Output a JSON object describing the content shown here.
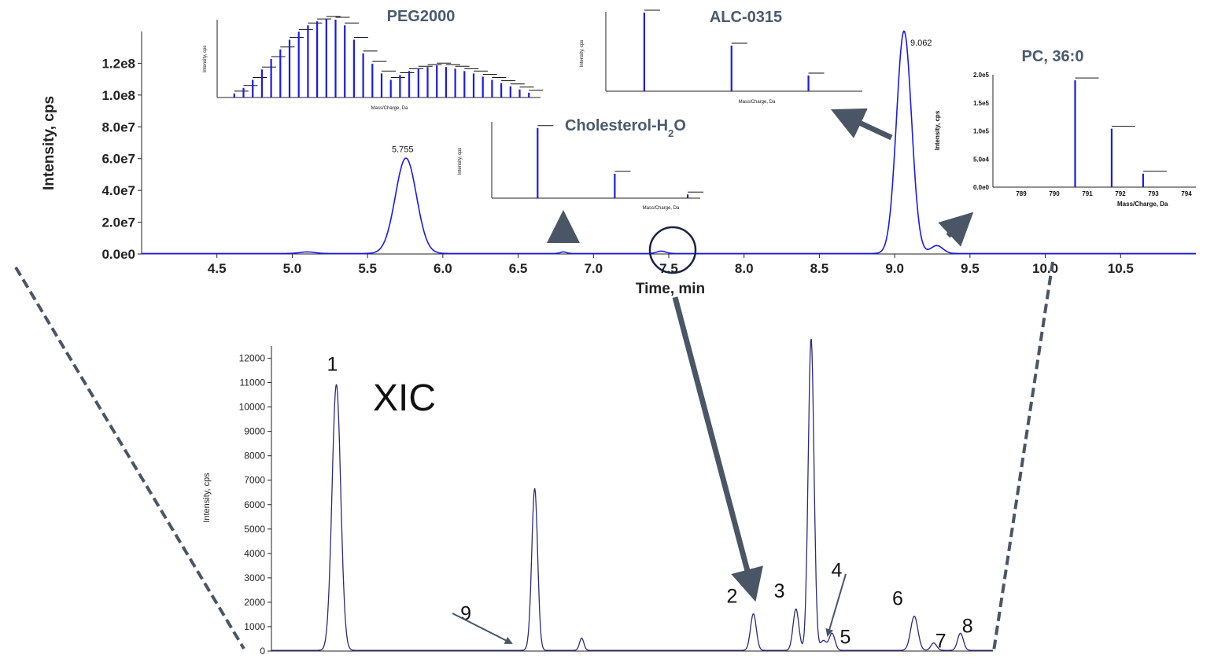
{
  "chart_data": [
    {
      "type": "line",
      "name": "tic",
      "xlabel": "Time, min",
      "ylabel": "Intensity, cps",
      "xlim": [
        4.0,
        11.0
      ],
      "ylim": [
        0,
        140000000
      ],
      "x_ticks": [
        "4.5",
        "5.0",
        "5.5",
        "6.0",
        "6.5",
        "7.0",
        "7.5",
        "8.0",
        "8.5",
        "9.0",
        "9.5",
        "10.0",
        "10.5"
      ],
      "y_ticks": [
        "0.0e0",
        "2.0e7",
        "4.0e7",
        "6.0e7",
        "8.0e7",
        "1.0e8",
        "1.2e8"
      ],
      "peaks": [
        {
          "x": 5.755,
          "y": 60000000,
          "width": 0.07,
          "label": "5.755"
        },
        {
          "x": 9.062,
          "y": 140000000,
          "width": 0.05,
          "label": "9.062"
        },
        {
          "x": 9.28,
          "y": 5000000,
          "width": 0.04,
          "label": ""
        },
        {
          "x": 5.1,
          "y": 1000000,
          "width": 0.05,
          "label": ""
        },
        {
          "x": 6.8,
          "y": 1000000,
          "width": 0.02,
          "label": ""
        },
        {
          "x": 7.45,
          "y": 1500000,
          "width": 0.03,
          "label": ""
        }
      ],
      "color": "#1a1aee"
    },
    {
      "type": "line",
      "name": "xic",
      "title": "XIC",
      "ylabel": "Intensity, cps",
      "ylim": [
        0,
        12500
      ],
      "y_ticks": [
        "0",
        "1000",
        "2000",
        "3000",
        "4000",
        "5000",
        "6000",
        "7000",
        "8000",
        "9000",
        "10000",
        "11000",
        "12000"
      ],
      "peaks": [
        {
          "x": 0.09,
          "y": 10900,
          "width": 0.006,
          "label": "1"
        },
        {
          "x": 0.365,
          "y": 6500,
          "width": 0.004,
          "label": ""
        },
        {
          "x": 0.36,
          "y": 300,
          "width": 0.004,
          "label": "9"
        },
        {
          "x": 0.43,
          "y": 500,
          "width": 0.003,
          "label": ""
        },
        {
          "x": 0.668,
          "y": 1500,
          "width": 0.004,
          "label": "2"
        },
        {
          "x": 0.727,
          "y": 1700,
          "width": 0.004,
          "label": "3"
        },
        {
          "x": 0.748,
          "y": 12800,
          "width": 0.004,
          "label": ""
        },
        {
          "x": 0.765,
          "y": 400,
          "width": 0.004,
          "label": "4"
        },
        {
          "x": 0.777,
          "y": 700,
          "width": 0.004,
          "label": "5"
        },
        {
          "x": 0.891,
          "y": 1400,
          "width": 0.005,
          "label": "6"
        },
        {
          "x": 0.918,
          "y": 300,
          "width": 0.004,
          "label": "7"
        },
        {
          "x": 0.955,
          "y": 700,
          "width": 0.004,
          "label": "8"
        }
      ],
      "color": "#2a2a80"
    },
    {
      "type": "bar",
      "name": "peg2000",
      "title": "PEG2000",
      "xlabel": "Mass/Charge, Da",
      "ylabel": "Intensity, cps",
      "x": [
        0.02,
        0.05,
        0.08,
        0.11,
        0.14,
        0.17,
        0.2,
        0.23,
        0.26,
        0.29,
        0.32,
        0.35,
        0.38,
        0.41,
        0.44,
        0.47,
        0.5,
        0.53,
        0.56,
        0.59,
        0.62,
        0.65,
        0.68,
        0.71,
        0.74,
        0.77,
        0.8,
        0.83,
        0.86,
        0.89,
        0.92,
        0.95,
        0.98
      ],
      "values": [
        0.05,
        0.12,
        0.22,
        0.35,
        0.48,
        0.6,
        0.72,
        0.82,
        0.9,
        0.95,
        0.98,
        0.97,
        0.9,
        0.72,
        0.55,
        0.42,
        0.3,
        0.22,
        0.28,
        0.33,
        0.36,
        0.38,
        0.4,
        0.38,
        0.36,
        0.33,
        0.3,
        0.26,
        0.22,
        0.18,
        0.14,
        0.1,
        0.06
      ],
      "color": "#1a1aee"
    },
    {
      "type": "bar",
      "name": "alc0315",
      "title": "ALC-0315",
      "xlabel": "Mass/Charge, Da",
      "ylabel": "Intensity, cps",
      "x": [
        0.15,
        0.49,
        0.79
      ],
      "values": [
        1.0,
        0.58,
        0.2
      ],
      "color": "#1a1aee"
    },
    {
      "type": "bar",
      "name": "cholesterol",
      "title": "Cholesterol-H",
      "title_sub": "2",
      "title_tail": "O",
      "xlabel": "Mass/Charge, Da",
      "ylabel": "Intensity, cps",
      "x": [
        0.22,
        0.59,
        0.94
      ],
      "values": [
        0.95,
        0.33,
        0.05
      ],
      "color": "#1a1aee"
    },
    {
      "type": "bar",
      "name": "pc360",
      "title": "PC, 36:0",
      "xlabel": "Mass/Charge, Da",
      "ylabel": "Intensity, cps",
      "x_ticks": [
        "789",
        "790",
        "791",
        "792",
        "793",
        "794"
      ],
      "y_ticks": [
        "0.0e0",
        "5.0e4",
        "1.0e5",
        "1.5e5",
        "2.0e5"
      ],
      "x": [
        0.405,
        0.585,
        0.74
      ],
      "values": [
        0.95,
        0.52,
        0.12
      ],
      "color": "#1a1aee"
    }
  ]
}
